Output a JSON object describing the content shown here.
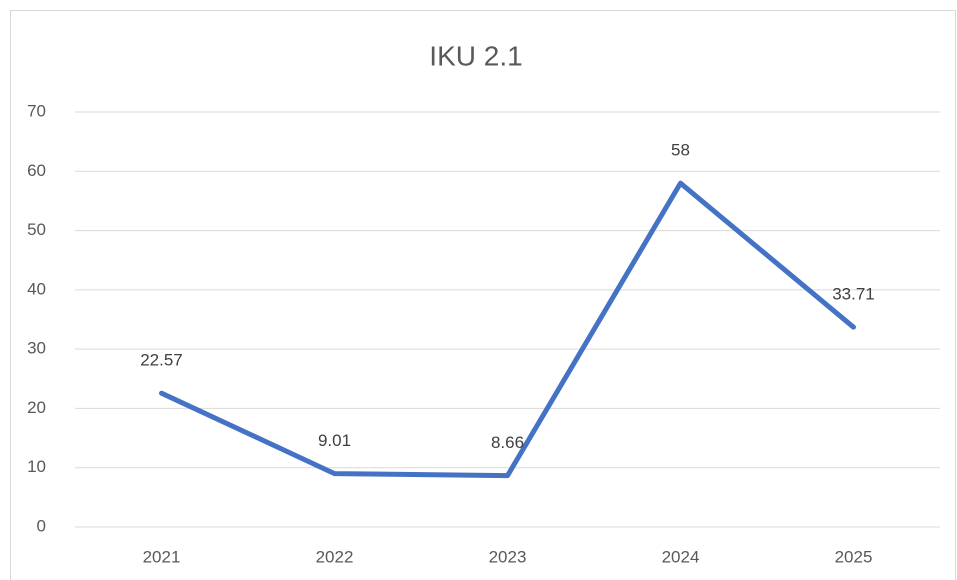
{
  "chart_data": {
    "type": "line",
    "title": "IKU 2.1",
    "categories": [
      "2021",
      "2022",
      "2023",
      "2024",
      "2025"
    ],
    "series": [
      {
        "name": "IKU 2.1",
        "color": "#4472c4",
        "values": [
          22.57,
          9.01,
          8.66,
          58,
          33.71
        ]
      }
    ],
    "ylim": [
      0,
      70
    ],
    "yticks": [
      0,
      10,
      20,
      30,
      40,
      50,
      60,
      70
    ],
    "grid": true,
    "data_labels": true
  }
}
